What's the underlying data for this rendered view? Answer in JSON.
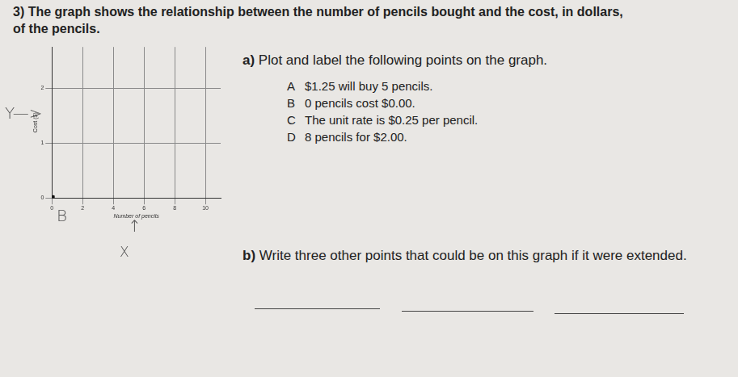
{
  "question": {
    "number": "3)",
    "text": "The graph shows the relationship between the number of pencils bought and the cost, in dollars, of the pencils."
  },
  "part_a": {
    "label": "a)",
    "text": "Plot and label the following points on the graph.",
    "items": [
      {
        "letter": "A",
        "text": "$1.25 will buy 5 pencils."
      },
      {
        "letter": "B",
        "text": "0 pencils cost $0.00."
      },
      {
        "letter": "C",
        "text": "The unit rate is $0.25 per pencil."
      },
      {
        "letter": "D",
        "text": "8 pencils for $2.00."
      }
    ]
  },
  "part_b": {
    "label": "b)",
    "text": "Write three other points that could be on this graph if it were extended.",
    "blanks": 3
  },
  "handwriting": [
    "Y—>",
    "B",
    "↑",
    "X"
  ],
  "chart_data": {
    "type": "scatter",
    "x_label": "Number of pencils",
    "y_label": "Cost ($)",
    "x": [
      0
    ],
    "values": [
      0
    ],
    "color": "#111111",
    "marker": "square",
    "xlim": [
      0,
      11
    ],
    "xticks": [
      0,
      2,
      4,
      6,
      8,
      10
    ],
    "ylim": [
      0,
      2.75
    ],
    "yticks": [
      0,
      1,
      2
    ],
    "grid": true
  }
}
